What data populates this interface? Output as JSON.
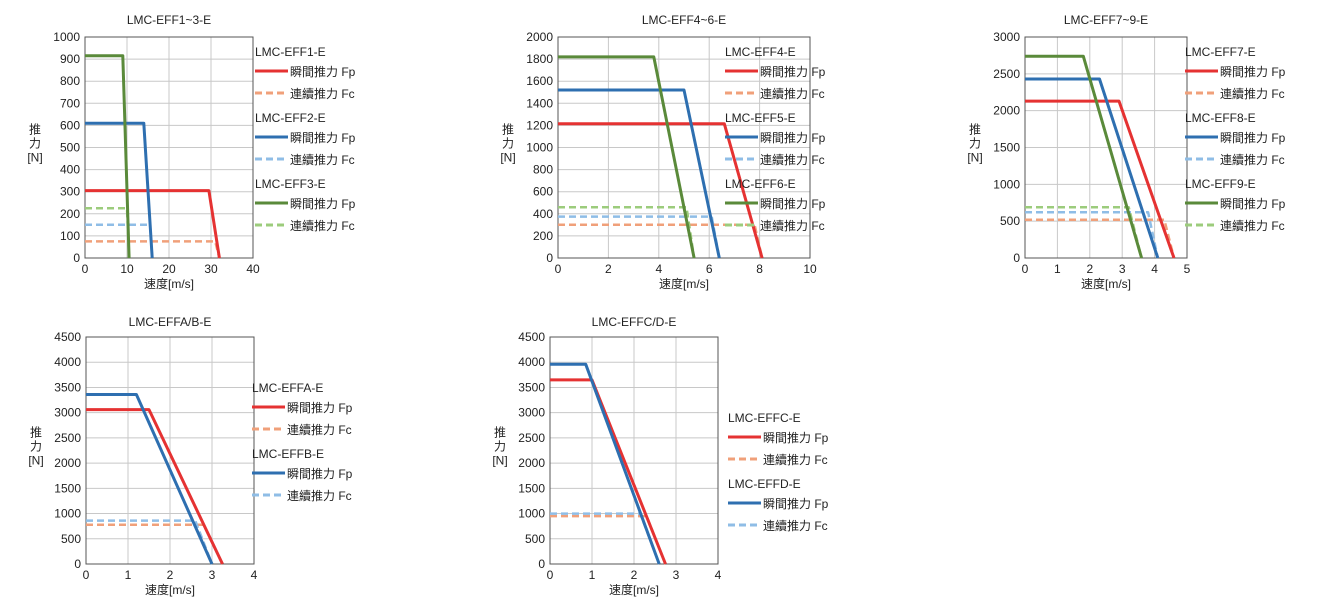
{
  "colors": {
    "grid": "#c8c8c8",
    "axis": "#555555",
    "red": "#e53232",
    "red_light": "#f0a07a",
    "blue": "#2e6fb0",
    "blue_light": "#8fbde6",
    "green": "#5a8a3a",
    "green_light": "#9ccc7c"
  },
  "chart_data": [
    {
      "type": "line",
      "title": "LMC-EFF1~3-E",
      "xlabel": "速度[m/s]",
      "ylabel": [
        "推",
        "力",
        "[N]"
      ],
      "xlim": [
        0,
        40
      ],
      "xticks": [
        0,
        10,
        20,
        30,
        40
      ],
      "ylim": [
        0,
        1000
      ],
      "yticks": [
        0,
        100,
        200,
        300,
        400,
        500,
        600,
        700,
        800,
        900,
        1000
      ],
      "grid": true,
      "legend": [
        {
          "header": "LMC-EFF1-E",
          "items": [
            {
              "label": "瞬間推力 Fp",
              "color_key": "red",
              "dashed": false
            },
            {
              "label": "連續推力 Fc",
              "color_key": "red_light",
              "dashed": true
            }
          ]
        },
        {
          "header": "LMC-EFF2-E",
          "items": [
            {
              "label": "瞬間推力 Fp",
              "color_key": "blue",
              "dashed": false
            },
            {
              "label": "連續推力 Fc",
              "color_key": "blue_light",
              "dashed": true
            }
          ]
        },
        {
          "header": "LMC-EFF3-E",
          "items": [
            {
              "label": "瞬間推力 Fp",
              "color_key": "green",
              "dashed": false
            },
            {
              "label": "連續推力 Fc",
              "color_key": "green_light",
              "dashed": true
            }
          ]
        }
      ],
      "series": [
        {
          "color_key": "red_light",
          "dashed": true,
          "x": [
            0,
            31,
            32
          ],
          "y": [
            75,
            75,
            0
          ]
        },
        {
          "color_key": "blue_light",
          "dashed": true,
          "x": [
            0,
            15.5,
            16
          ],
          "y": [
            150,
            150,
            0
          ]
        },
        {
          "color_key": "green_light",
          "dashed": true,
          "x": [
            0,
            10,
            10.5
          ],
          "y": [
            225,
            225,
            0
          ]
        },
        {
          "color_key": "red",
          "dashed": false,
          "x": [
            0,
            29.5,
            32
          ],
          "y": [
            305,
            305,
            0
          ]
        },
        {
          "color_key": "blue",
          "dashed": false,
          "x": [
            0,
            14,
            16
          ],
          "y": [
            610,
            610,
            0
          ]
        },
        {
          "color_key": "green",
          "dashed": false,
          "x": [
            0,
            9,
            10.5
          ],
          "y": [
            915,
            915,
            0
          ]
        }
      ]
    },
    {
      "type": "line",
      "title": "LMC-EFF4~6-E",
      "xlabel": "速度[m/s]",
      "ylabel": [
        "推",
        "力",
        "[N]"
      ],
      "xlim": [
        0,
        10
      ],
      "xticks": [
        0,
        2,
        4,
        6,
        8,
        10
      ],
      "ylim": [
        0,
        2000
      ],
      "yticks": [
        0,
        200,
        400,
        600,
        800,
        1000,
        1200,
        1400,
        1600,
        1800,
        2000
      ],
      "grid": true,
      "legend": [
        {
          "header": "LMC-EFF4-E",
          "items": [
            {
              "label": "瞬間推力 Fp",
              "color_key": "red",
              "dashed": false
            },
            {
              "label": "連續推力 Fc",
              "color_key": "red_light",
              "dashed": true
            }
          ]
        },
        {
          "header": "LMC-EFF5-E",
          "items": [
            {
              "label": "瞬間推力 Fp",
              "color_key": "blue",
              "dashed": false
            },
            {
              "label": "連續推力 Fc",
              "color_key": "blue_light",
              "dashed": true
            }
          ]
        },
        {
          "header": "LMC-EFF6-E",
          "items": [
            {
              "label": "瞬間推力 Fp",
              "color_key": "green",
              "dashed": false
            },
            {
              "label": "連續推力 Fc",
              "color_key": "green_light",
              "dashed": true
            }
          ]
        }
      ],
      "series": [
        {
          "color_key": "red_light",
          "dashed": true,
          "x": [
            0,
            7.8,
            8.1
          ],
          "y": [
            300,
            300,
            0
          ]
        },
        {
          "color_key": "blue_light",
          "dashed": true,
          "x": [
            0,
            6.1,
            6.4
          ],
          "y": [
            375,
            375,
            0
          ]
        },
        {
          "color_key": "green_light",
          "dashed": true,
          "x": [
            0,
            5.1,
            5.4
          ],
          "y": [
            460,
            460,
            0
          ]
        },
        {
          "color_key": "red",
          "dashed": false,
          "x": [
            0,
            6.6,
            8.1
          ],
          "y": [
            1215,
            1215,
            0
          ]
        },
        {
          "color_key": "blue",
          "dashed": false,
          "x": [
            0,
            5.0,
            6.4
          ],
          "y": [
            1520,
            1520,
            0
          ]
        },
        {
          "color_key": "green",
          "dashed": false,
          "x": [
            0,
            3.8,
            5.4
          ],
          "y": [
            1820,
            1820,
            0
          ]
        }
      ]
    },
    {
      "type": "line",
      "title": "LMC-EFF7~9-E",
      "xlabel": "速度[m/s]",
      "ylabel": [
        "推",
        "力",
        "[N]"
      ],
      "xlim": [
        0,
        5
      ],
      "xticks": [
        0,
        1,
        2,
        3,
        4,
        5
      ],
      "ylim": [
        0,
        3000
      ],
      "yticks": [
        0,
        500,
        1000,
        1500,
        2000,
        2500,
        3000
      ],
      "grid": true,
      "legend": [
        {
          "header": "LMC-EFF7-E",
          "items": [
            {
              "label": "瞬間推力 Fp",
              "color_key": "red",
              "dashed": false
            },
            {
              "label": "連續推力 Fc",
              "color_key": "red_light",
              "dashed": true
            }
          ]
        },
        {
          "header": "LMC-EFF8-E",
          "items": [
            {
              "label": "瞬間推力 Fp",
              "color_key": "blue",
              "dashed": false
            },
            {
              "label": "連續推力 Fc",
              "color_key": "blue_light",
              "dashed": true
            }
          ]
        },
        {
          "header": "LMC-EFF9-E",
          "items": [
            {
              "label": "瞬間推力 Fp",
              "color_key": "green",
              "dashed": false
            },
            {
              "label": "連續推力 Fc",
              "color_key": "green_light",
              "dashed": true
            }
          ]
        }
      ],
      "series": [
        {
          "color_key": "red_light",
          "dashed": true,
          "x": [
            0,
            4.3,
            4.6
          ],
          "y": [
            520,
            520,
            0
          ]
        },
        {
          "color_key": "blue_light",
          "dashed": true,
          "x": [
            0,
            3.8,
            4.1
          ],
          "y": [
            620,
            620,
            0
          ]
        },
        {
          "color_key": "green_light",
          "dashed": true,
          "x": [
            0,
            3.2,
            3.6
          ],
          "y": [
            690,
            690,
            0
          ]
        },
        {
          "color_key": "red",
          "dashed": false,
          "x": [
            0,
            2.9,
            4.6
          ],
          "y": [
            2130,
            2130,
            0
          ]
        },
        {
          "color_key": "blue",
          "dashed": false,
          "x": [
            0,
            2.3,
            4.1
          ],
          "y": [
            2430,
            2430,
            0
          ]
        },
        {
          "color_key": "green",
          "dashed": false,
          "x": [
            0,
            1.8,
            3.6
          ],
          "y": [
            2740,
            2740,
            0
          ]
        }
      ]
    },
    {
      "type": "line",
      "title": "LMC-EFFA/B-E",
      "xlabel": "速度[m/s]",
      "ylabel": [
        "推",
        "力",
        "[N]"
      ],
      "xlim": [
        0,
        4
      ],
      "xticks": [
        0,
        1,
        2,
        3,
        4
      ],
      "ylim": [
        0,
        4500
      ],
      "yticks": [
        0,
        500,
        1000,
        1500,
        2000,
        2500,
        3000,
        3500,
        4000,
        4500
      ],
      "grid": true,
      "legend": [
        {
          "header": "LMC-EFFA-E",
          "items": [
            {
              "label": "瞬間推力 Fp",
              "color_key": "red",
              "dashed": false
            },
            {
              "label": "連續推力 Fc",
              "color_key": "red_light",
              "dashed": true
            }
          ]
        },
        {
          "header": "LMC-EFFB-E",
          "items": [
            {
              "label": "瞬間推力 Fp",
              "color_key": "blue",
              "dashed": false
            },
            {
              "label": "連續推力 Fc",
              "color_key": "blue_light",
              "dashed": true
            }
          ]
        }
      ],
      "series": [
        {
          "color_key": "red_light",
          "dashed": true,
          "x": [
            0,
            2.8,
            3.25
          ],
          "y": [
            780,
            780,
            0
          ]
        },
        {
          "color_key": "blue_light",
          "dashed": true,
          "x": [
            0,
            2.6,
            3.0
          ],
          "y": [
            860,
            860,
            0
          ]
        },
        {
          "color_key": "red",
          "dashed": false,
          "x": [
            0,
            1.5,
            3.25
          ],
          "y": [
            3060,
            3060,
            0
          ]
        },
        {
          "color_key": "blue",
          "dashed": false,
          "x": [
            0,
            1.2,
            3.0
          ],
          "y": [
            3360,
            3360,
            0
          ]
        }
      ]
    },
    {
      "type": "line",
      "title": "LMC-EFFC/D-E",
      "xlabel": "速度[m/s]",
      "ylabel": [
        "推",
        "力",
        "[N]"
      ],
      "xlim": [
        0,
        4
      ],
      "xticks": [
        0,
        1,
        2,
        3,
        4
      ],
      "ylim": [
        0,
        4500
      ],
      "yticks": [
        0,
        500,
        1000,
        1500,
        2000,
        2500,
        3000,
        3500,
        4000,
        4500
      ],
      "grid": true,
      "legend": [
        {
          "header": "LMC-EFFC-E",
          "items": [
            {
              "label": "瞬間推力 Fp",
              "color_key": "red",
              "dashed": false
            },
            {
              "label": "連續推力 Fc",
              "color_key": "red_light",
              "dashed": true
            }
          ]
        },
        {
          "header": "LMC-EFFD-E",
          "items": [
            {
              "label": "瞬間推力 Fp",
              "color_key": "blue",
              "dashed": false
            },
            {
              "label": "連續推力 Fc",
              "color_key": "blue_light",
              "dashed": true
            }
          ]
        }
      ],
      "series": [
        {
          "color_key": "red_light",
          "dashed": true,
          "x": [
            0,
            2.3,
            2.75
          ],
          "y": [
            950,
            950,
            0
          ]
        },
        {
          "color_key": "blue_light",
          "dashed": true,
          "x": [
            0,
            2.15,
            2.6
          ],
          "y": [
            1000,
            1000,
            0
          ]
        },
        {
          "color_key": "red",
          "dashed": false,
          "x": [
            0,
            1.0,
            2.75
          ],
          "y": [
            3650,
            3650,
            0
          ]
        },
        {
          "color_key": "blue",
          "dashed": false,
          "x": [
            0,
            0.85,
            2.6
          ],
          "y": [
            3960,
            3960,
            0
          ]
        }
      ]
    }
  ]
}
